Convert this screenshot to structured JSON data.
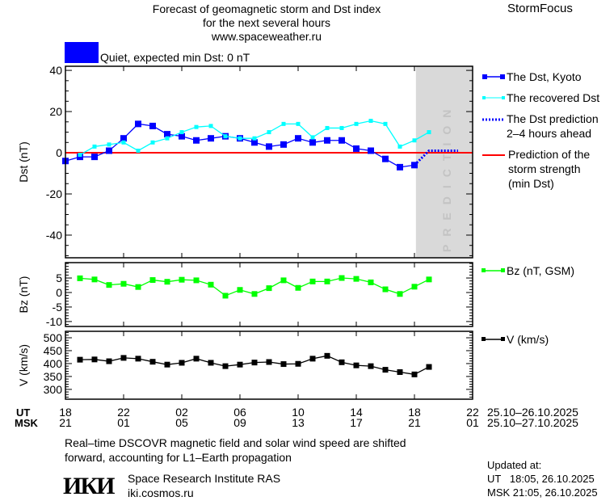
{
  "header": {
    "title_line1": "Forecast of geomagnetic storm and Dst index",
    "title_line2": "for the next several hours",
    "website": "www.spaceweather.ru",
    "brand": "StormFocus",
    "status_text": "Quiet, expected min Dst: 0 nT",
    "status_color": "#0000ff"
  },
  "legend": {
    "dst_kyoto": "The Dst, Kyoto",
    "recovered": "The recovered Dst",
    "prediction_l1": "The Dst prediction",
    "prediction_l2": "2–4 hours ahead",
    "storm_l1": "Prediction of the",
    "storm_l2": "storm strength",
    "storm_l3": "(min Dst)",
    "bz": "Bz (nT, GSM)",
    "v": "V (km/s)"
  },
  "prediction_band_label": "PREDICTION",
  "time_axis": {
    "ut_label": "UT",
    "msk_label": "MSK",
    "ut_ticks": [
      "18",
      "22",
      "02",
      "06",
      "10",
      "14",
      "18",
      "22"
    ],
    "msk_ticks": [
      "21",
      "01",
      "05",
      "09",
      "13",
      "17",
      "21",
      "01"
    ],
    "ut_range": "25.10–26.10.2025",
    "msk_range": "25.10–27.10.2025"
  },
  "footer": {
    "note_line1": "Real–time DSCOVR magnetic field and solar wind speed are shifted",
    "note_line2": "forward, accounting for L1–Earth propagation",
    "logo_text": "ИКИ",
    "institute": "Space Research Institute RAS",
    "institute_url": "iki.cosmos.ru",
    "updated_label": "Updated at:",
    "updated_ut": "UT   18:05, 26.10.2025",
    "updated_msk": "MSK 21:05, 26.10.2025"
  },
  "chart_data": [
    {
      "type": "line",
      "ylabel": "Dst (nT)",
      "ylim": [
        -51,
        42
      ],
      "yticks": [
        40,
        20,
        0,
        -20,
        -40
      ],
      "x_unit": "hours since 18 UT 25.10.2025",
      "xlim": [
        0,
        28
      ],
      "prediction_band_start": 24.1,
      "storm_strength_min_dst": 0,
      "series": [
        {
          "name": "The Dst, Kyoto",
          "color": "#0000ff",
          "x": [
            0,
            1,
            2,
            3,
            4,
            5,
            6,
            7,
            8,
            9,
            10,
            11,
            12,
            13,
            14,
            15,
            16,
            17,
            18,
            19,
            20,
            21,
            22,
            23,
            24
          ],
          "y": [
            -4,
            -2,
            -2,
            1,
            7,
            14,
            13,
            9,
            8,
            6,
            7,
            8,
            7,
            5,
            3,
            4,
            7,
            5,
            6,
            6,
            2,
            1,
            -3,
            -7,
            -6
          ]
        },
        {
          "name": "The recovered Dst",
          "color": "#00ffff",
          "x": [
            1,
            2,
            3,
            4,
            5,
            6,
            7,
            8,
            9,
            10,
            11,
            12,
            13,
            14,
            15,
            16,
            17,
            18,
            19,
            20,
            21,
            22,
            23,
            24,
            25
          ],
          "y": [
            -1,
            3,
            4,
            5,
            1,
            5,
            7,
            10,
            12.5,
            13,
            8,
            7,
            7,
            10,
            14,
            14,
            7.5,
            12,
            12,
            14,
            15.5,
            14,
            3,
            6,
            10
          ]
        },
        {
          "name": "The Dst prediction 2–4 hours ahead",
          "color": "#0000ff",
          "x": [
            24,
            25,
            26,
            27
          ],
          "y": [
            -6,
            1,
            1,
            1
          ]
        }
      ]
    },
    {
      "type": "line",
      "ylabel": "Bz (nT)",
      "ylim": [
        -11.7,
        10.3
      ],
      "yticks": [
        5,
        0,
        -5,
        -10
      ],
      "series": [
        {
          "name": "Bz (nT, GSM)",
          "color": "#00ff00",
          "x": [
            1,
            2,
            3,
            4,
            5,
            6,
            7,
            8,
            9,
            10,
            11,
            12,
            13,
            14,
            15,
            16,
            17,
            18,
            19,
            20,
            21,
            22,
            23,
            24,
            25
          ],
          "y": [
            4.9,
            4.5,
            2.6,
            3,
            1.9,
            4.3,
            3.7,
            4.4,
            4.2,
            2.7,
            -1.1,
            0.9,
            -0.5,
            1.5,
            4.2,
            1.6,
            3.8,
            3.8,
            5,
            4.7,
            3.5,
            1.1,
            -0.5,
            2,
            4.5
          ]
        }
      ]
    },
    {
      "type": "line",
      "ylabel": "V (km/s)",
      "ylim": [
        262,
        525
      ],
      "yticks": [
        500,
        450,
        400,
        350,
        300
      ],
      "series": [
        {
          "name": "V (km/s)",
          "color": "#000000",
          "x": [
            1,
            2,
            3,
            4,
            5,
            6,
            7,
            8,
            9,
            10,
            11,
            12,
            13,
            14,
            15,
            16,
            17,
            18,
            19,
            20,
            21,
            22,
            23,
            24,
            25
          ],
          "y": [
            415,
            416,
            409,
            422,
            419,
            407,
            396,
            403,
            419,
            403,
            390,
            396,
            404,
            406,
            398,
            399,
            419,
            430,
            405,
            393,
            390,
            376,
            367,
            358,
            387
          ]
        }
      ]
    }
  ]
}
